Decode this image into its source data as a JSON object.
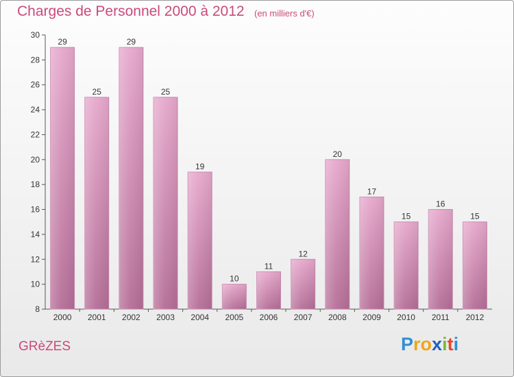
{
  "header": {
    "title": "Charges de Personnel 2000 à 2012",
    "subtitle": "(en milliers d'€)"
  },
  "footer": {
    "town": "GRèZES",
    "logo_letters": [
      "P",
      "r",
      "o",
      "x",
      "i",
      "t",
      "i"
    ],
    "logo_colors": [
      "#2f8fd6",
      "#f2a51a",
      "#f2a51a",
      "#1f5fbf",
      "#7ab83a",
      "#e8452c",
      "#2f8fd6"
    ]
  },
  "chart_data": {
    "type": "bar",
    "title": "Charges de Personnel 2000 à 2012",
    "subtitle": "(en milliers d'€)",
    "categories": [
      "2000",
      "2001",
      "2002",
      "2003",
      "2004",
      "2005",
      "2006",
      "2007",
      "2008",
      "2009",
      "2010",
      "2011",
      "2012"
    ],
    "values": [
      29,
      25,
      29,
      25,
      19,
      10,
      11,
      12,
      20,
      17,
      15,
      16,
      15
    ],
    "ylim": [
      8,
      30
    ],
    "yticks": [
      8,
      10,
      12,
      14,
      16,
      18,
      20,
      22,
      24,
      26,
      28,
      30
    ],
    "grid": false,
    "legend": "none",
    "bar_color": "#d98fb8"
  }
}
